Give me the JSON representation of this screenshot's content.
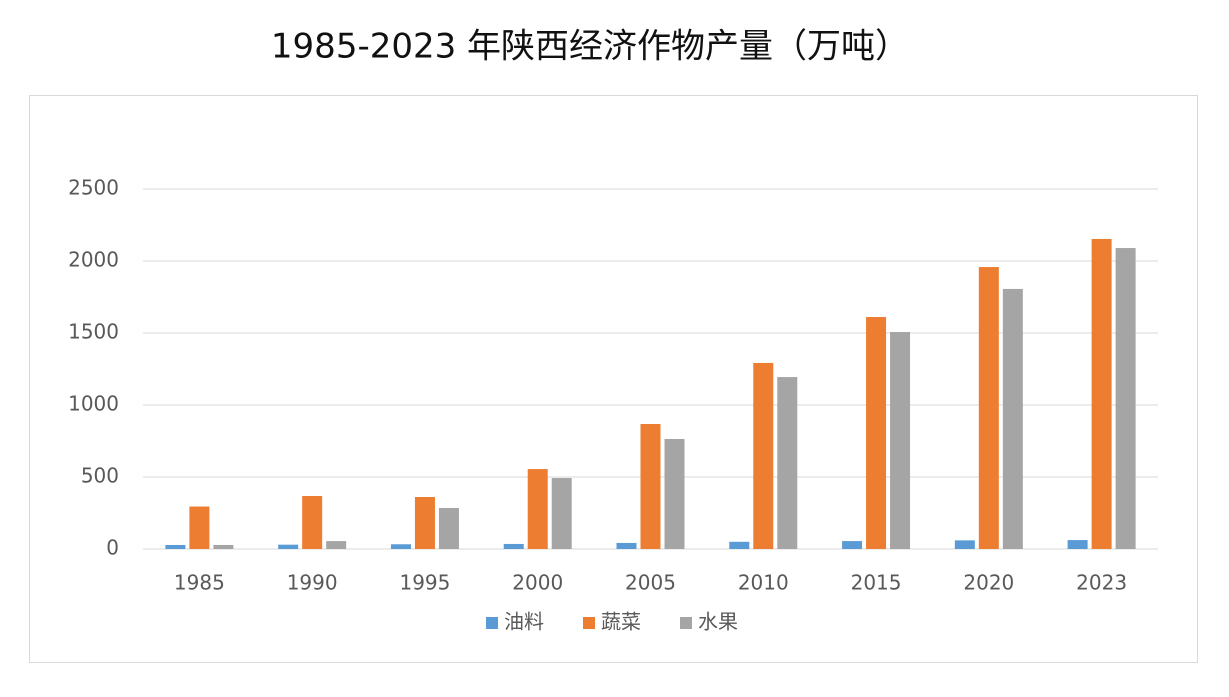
{
  "chart_data": {
    "type": "bar",
    "title": "1985-2023 年陕西经济作物产量（万吨）",
    "categories": [
      "1985",
      "1990",
      "1995",
      "2000",
      "2005",
      "2010",
      "2015",
      "2020",
      "2023"
    ],
    "series": [
      {
        "name": "油料",
        "color": "#5b9bd5",
        "values": [
          28,
          30,
          33,
          35,
          42,
          50,
          55,
          60,
          62
        ]
      },
      {
        "name": "蔬菜",
        "color": "#ed7d31",
        "values": [
          295,
          368,
          361,
          555,
          868,
          1292,
          1611,
          1958,
          2153
        ]
      },
      {
        "name": "水果",
        "color": "#a5a5a5",
        "values": [
          28,
          55,
          285,
          493,
          764,
          1194,
          1507,
          1806,
          2090
        ]
      }
    ],
    "ylim": [
      0,
      2500
    ],
    "yticks": [
      0,
      500,
      1000,
      1500,
      2000,
      2500
    ],
    "grid": true,
    "legend": "bottom"
  }
}
